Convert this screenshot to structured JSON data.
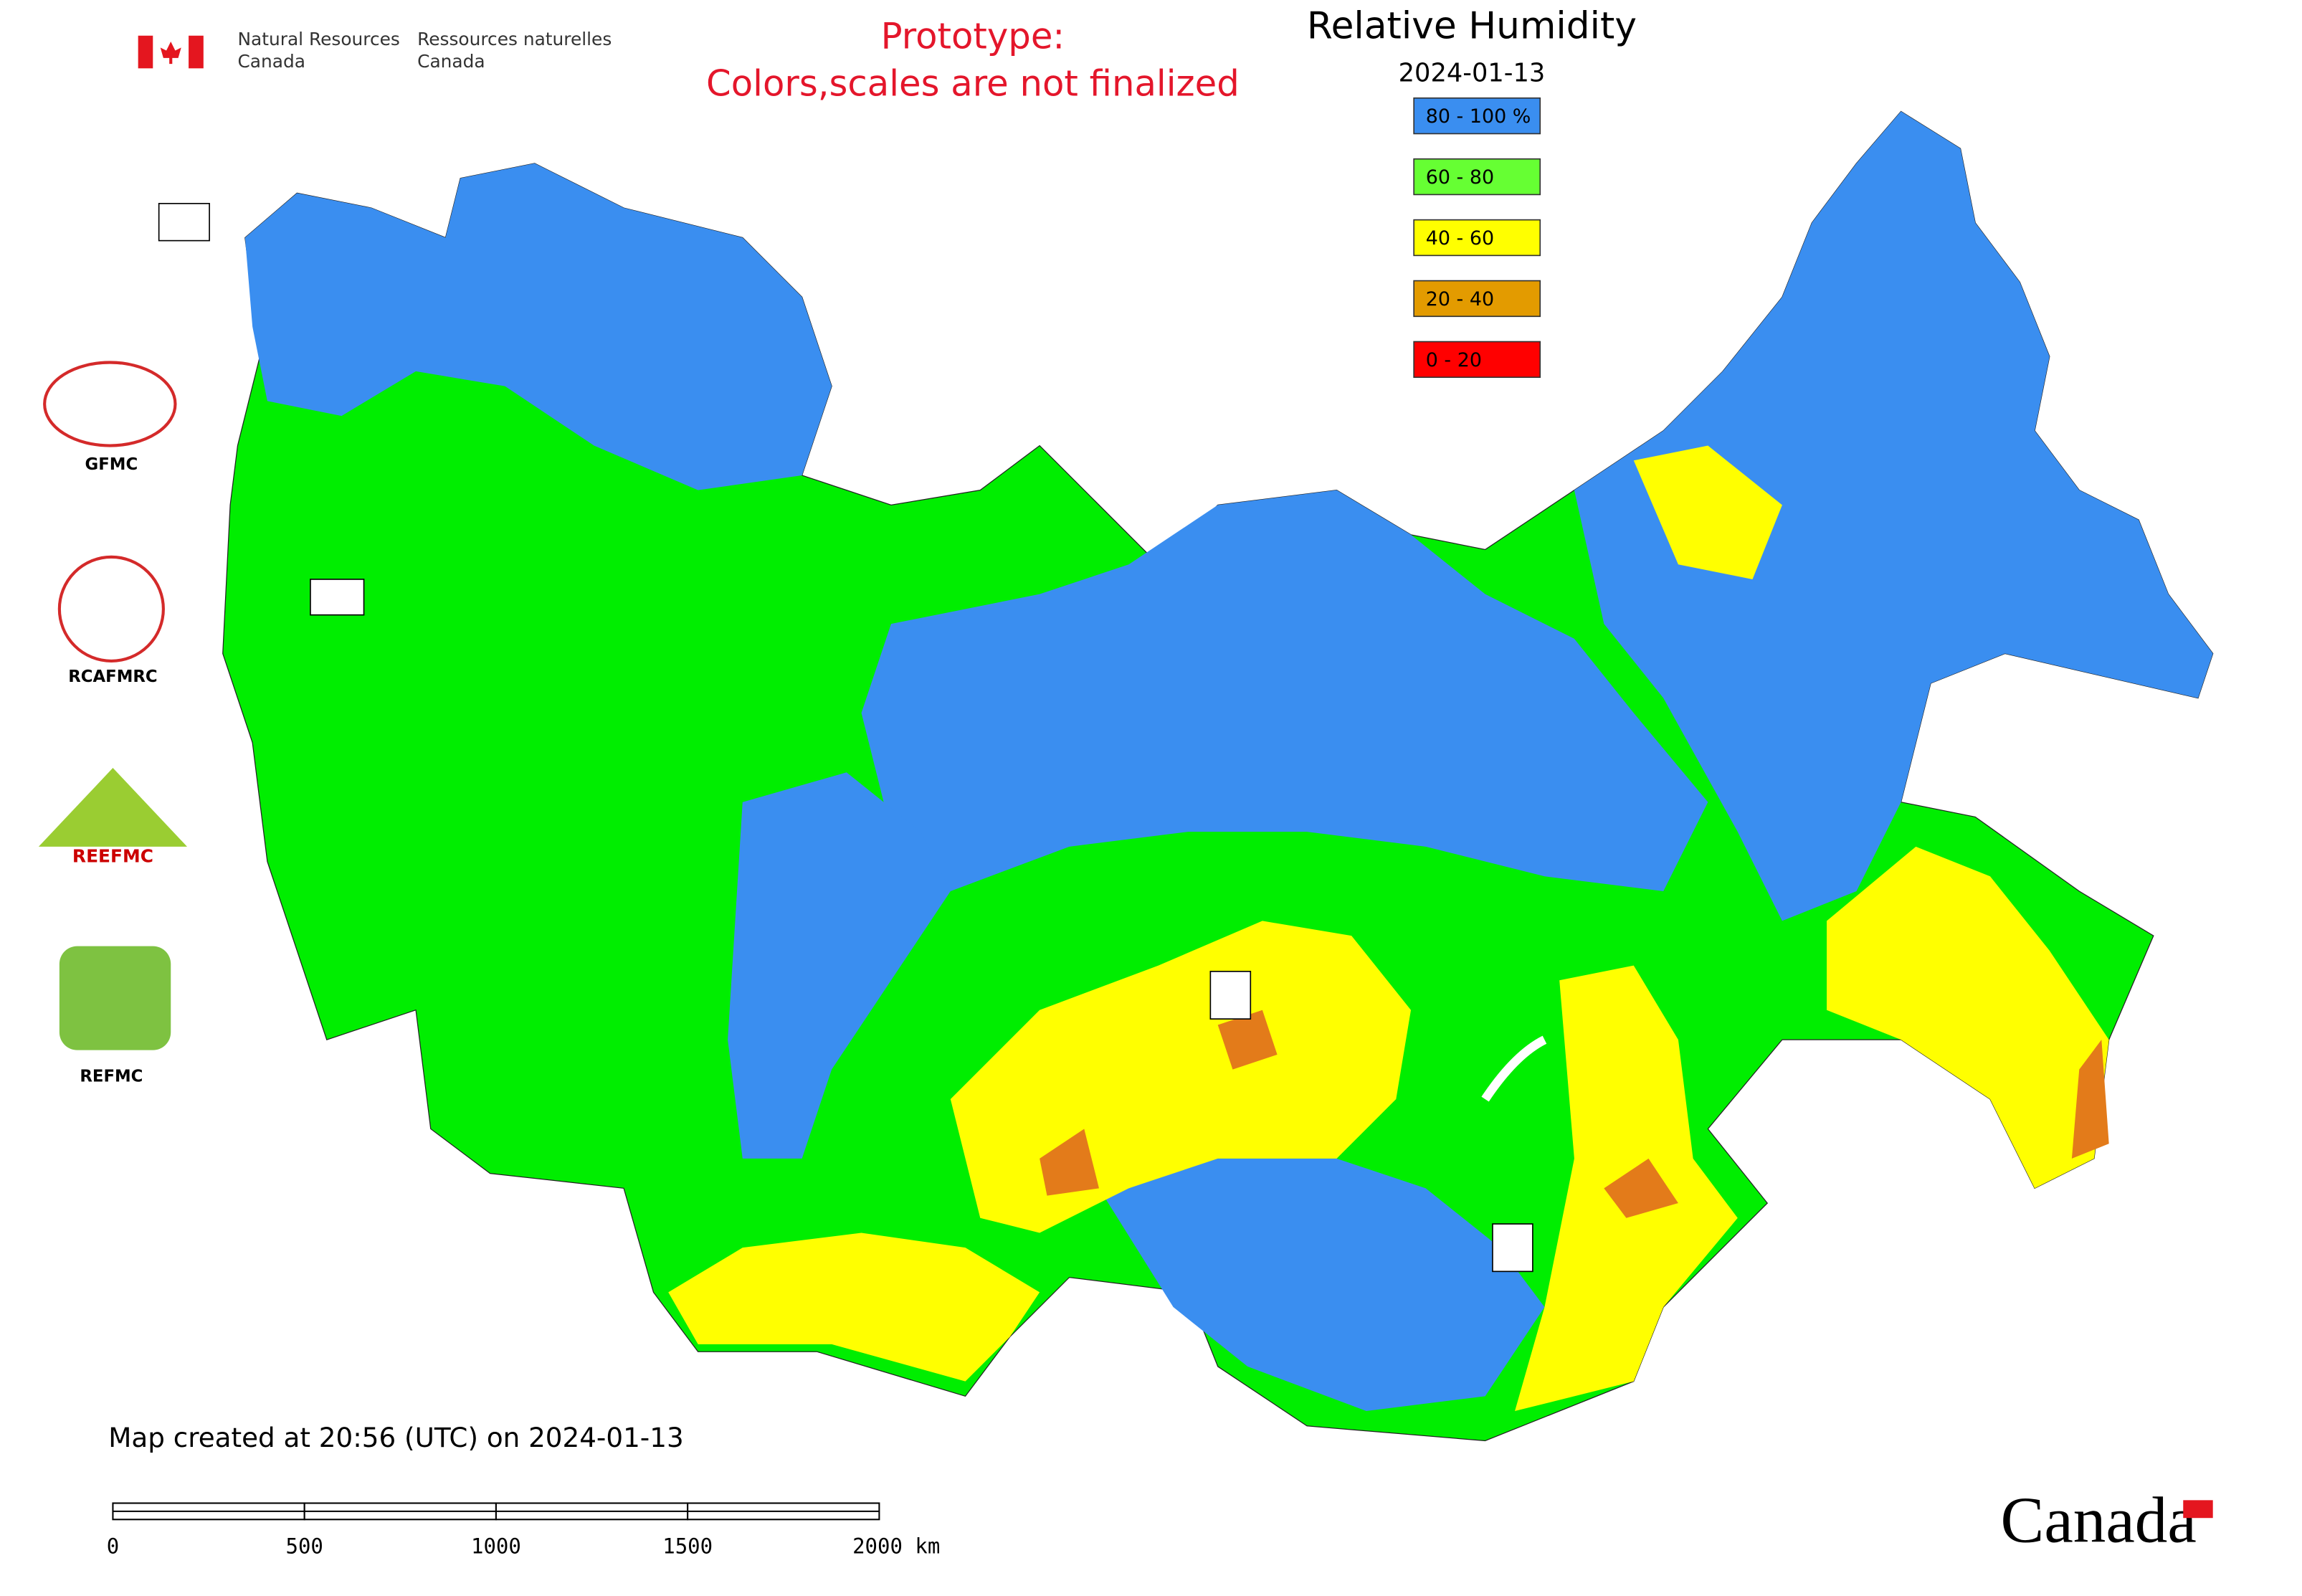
{
  "header": {
    "agency_en": [
      "Natural Resources",
      "Canada"
    ],
    "agency_fr": [
      "Ressources naturelles",
      "Canada"
    ],
    "notice": [
      "Prototype:",
      "Colors,scales are not finalized"
    ]
  },
  "map": {
    "title": "Relative Humidity",
    "date": "2024-01-13",
    "legend": [
      {
        "label": "80 - 100 %",
        "color": "#3a8ef0"
      },
      {
        "label": "60 - 80",
        "color": "#66ff33"
      },
      {
        "label": "40 - 60",
        "color": "#ffff00"
      },
      {
        "label": "20 - 40",
        "color": "#e39b00"
      },
      {
        "label": "0 - 20",
        "color": "#ff0000"
      }
    ],
    "logos": [
      "GFMC",
      "RCAFMRC",
      "REEFMC",
      "REFMC"
    ],
    "caption": "Map created at 20:56 (UTC) on 2024-01-13",
    "scale_bar": [
      "0",
      "500",
      "1000",
      "1500",
      "2000 km"
    ]
  },
  "footer": {
    "wordmark": "Canada"
  }
}
